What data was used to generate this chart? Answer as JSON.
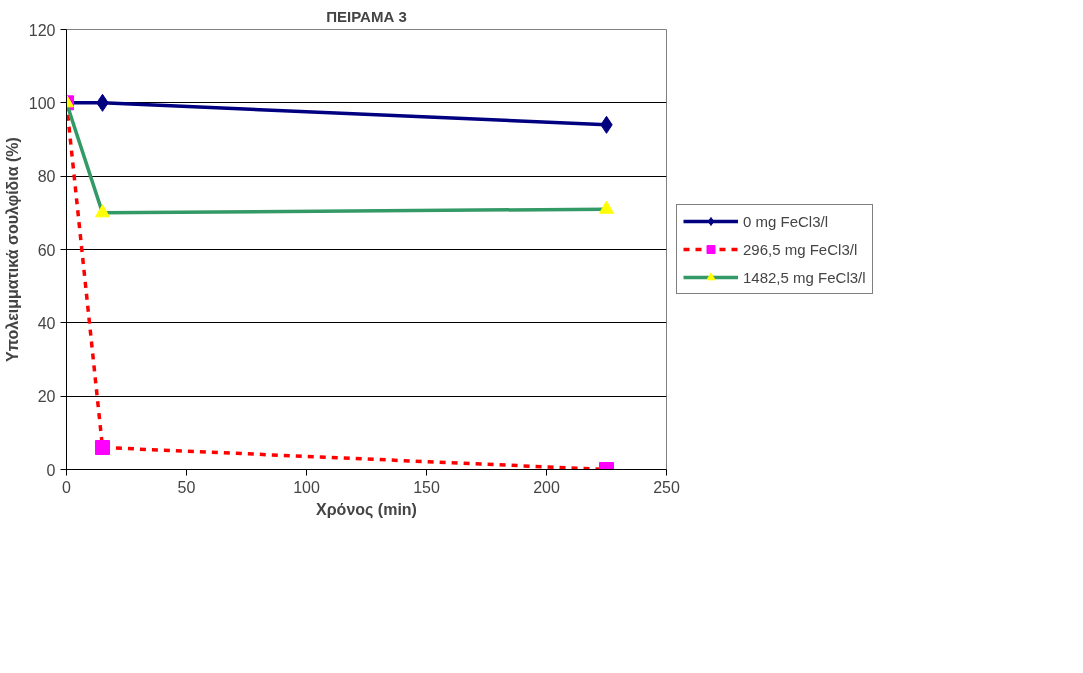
{
  "chart_data": {
    "type": "line",
    "title": "ΠΕΙΡΑΜΑ 3",
    "xlabel": "Χρόνος (min)",
    "ylabel": "Υπολειμματικά σουλφίδια (%)",
    "x": [
      0,
      15,
      225
    ],
    "series": [
      {
        "name": "0 mg FeCl3/l",
        "color": "#000080",
        "colors": [
          "#000080",
          "#000080",
          "#000080"
        ],
        "marker": "diamond",
        "line_style": "solid",
        "values": [
          100,
          100,
          94
        ]
      },
      {
        "name": "296,5 mg FeCl3/l",
        "color": "#ff0000",
        "colors": [
          "#ff00ff",
          "#ff00ff",
          "#ff00ff"
        ],
        "marker": "square",
        "line_style": "dashed",
        "values": [
          100,
          6,
          0
        ]
      },
      {
        "name": "1482,5 mg FeCl3/l",
        "color": "#339966",
        "colors": [
          "#ffff00",
          "#ffff00",
          "#ffff00"
        ],
        "marker": "triangle",
        "line_style": "solid",
        "values": [
          100,
          70,
          71
        ]
      }
    ],
    "xlim": [
      0,
      250
    ],
    "xticks": [
      0,
      50,
      100,
      150,
      200,
      250
    ],
    "ylim": [
      0,
      120
    ],
    "yticks": [
      0,
      20,
      40,
      60,
      80,
      100,
      120
    ],
    "grid": "y",
    "legend": "right"
  }
}
